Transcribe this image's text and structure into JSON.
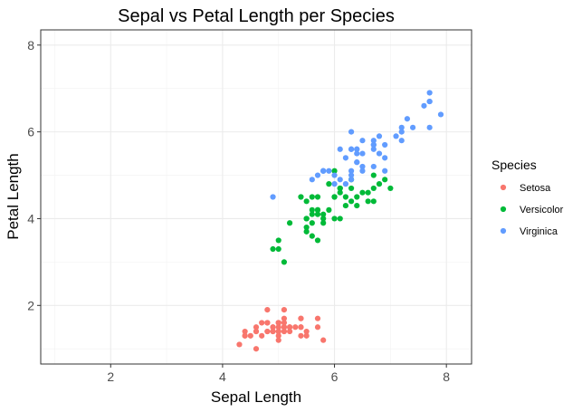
{
  "chart_data": {
    "type": "scatter",
    "title": "Sepal vs Petal Length per Species",
    "xlabel": "Sepal Length",
    "ylabel": "Petal Length",
    "xlim": [
      0.75,
      8.45
    ],
    "ylim": [
      0.65,
      8.35
    ],
    "x_ticks": [
      2,
      4,
      6,
      8
    ],
    "y_ticks": [
      2,
      4,
      6,
      8
    ],
    "grid": true,
    "legend": {
      "title": "Species",
      "position": "right"
    },
    "series": [
      {
        "name": "Setosa",
        "color": "#F8766D",
        "points": [
          [
            5.1,
            1.4
          ],
          [
            4.9,
            1.4
          ],
          [
            4.7,
            1.3
          ],
          [
            4.6,
            1.5
          ],
          [
            5.0,
            1.4
          ],
          [
            5.4,
            1.7
          ],
          [
            4.6,
            1.4
          ],
          [
            5.0,
            1.5
          ],
          [
            4.4,
            1.4
          ],
          [
            4.9,
            1.5
          ],
          [
            5.4,
            1.5
          ],
          [
            4.8,
            1.6
          ],
          [
            4.8,
            1.4
          ],
          [
            4.3,
            1.1
          ],
          [
            5.8,
            1.2
          ],
          [
            5.7,
            1.5
          ],
          [
            5.4,
            1.3
          ],
          [
            5.1,
            1.4
          ],
          [
            5.7,
            1.7
          ],
          [
            5.1,
            1.5
          ],
          [
            5.4,
            1.7
          ],
          [
            5.1,
            1.5
          ],
          [
            4.6,
            1.0
          ],
          [
            5.1,
            1.7
          ],
          [
            4.8,
            1.9
          ],
          [
            5.0,
            1.6
          ],
          [
            5.0,
            1.6
          ],
          [
            5.2,
            1.5
          ],
          [
            5.2,
            1.4
          ],
          [
            4.7,
            1.6
          ],
          [
            4.8,
            1.6
          ],
          [
            5.4,
            1.5
          ],
          [
            5.2,
            1.5
          ],
          [
            5.5,
            1.4
          ],
          [
            4.9,
            1.5
          ],
          [
            5.0,
            1.2
          ],
          [
            5.5,
            1.3
          ],
          [
            4.9,
            1.4
          ],
          [
            4.4,
            1.3
          ],
          [
            5.1,
            1.5
          ],
          [
            5.0,
            1.3
          ],
          [
            4.5,
            1.3
          ],
          [
            4.4,
            1.3
          ],
          [
            5.0,
            1.6
          ],
          [
            5.1,
            1.9
          ],
          [
            4.8,
            1.4
          ],
          [
            5.1,
            1.6
          ],
          [
            4.6,
            1.4
          ],
          [
            5.3,
            1.5
          ],
          [
            5.0,
            1.4
          ]
        ]
      },
      {
        "name": "Versicolor",
        "color": "#00BA38",
        "points": [
          [
            7.0,
            4.7
          ],
          [
            6.4,
            4.5
          ],
          [
            6.9,
            4.9
          ],
          [
            5.5,
            4.0
          ],
          [
            6.5,
            4.6
          ],
          [
            5.7,
            4.5
          ],
          [
            6.3,
            4.7
          ],
          [
            4.9,
            3.3
          ],
          [
            6.6,
            4.6
          ],
          [
            5.2,
            3.9
          ],
          [
            5.0,
            3.5
          ],
          [
            5.9,
            4.2
          ],
          [
            6.0,
            4.0
          ],
          [
            6.1,
            4.7
          ],
          [
            5.6,
            3.6
          ],
          [
            6.7,
            4.4
          ],
          [
            5.6,
            4.5
          ],
          [
            5.8,
            4.1
          ],
          [
            6.2,
            4.5
          ],
          [
            5.6,
            3.9
          ],
          [
            5.9,
            4.8
          ],
          [
            6.1,
            4.0
          ],
          [
            6.3,
            4.9
          ],
          [
            6.1,
            4.7
          ],
          [
            6.4,
            4.3
          ],
          [
            6.6,
            4.4
          ],
          [
            6.8,
            4.8
          ],
          [
            6.7,
            5.0
          ],
          [
            6.0,
            4.5
          ],
          [
            5.7,
            3.5
          ],
          [
            5.5,
            3.8
          ],
          [
            5.5,
            3.7
          ],
          [
            5.8,
            3.9
          ],
          [
            6.0,
            5.1
          ],
          [
            5.4,
            4.5
          ],
          [
            6.0,
            4.5
          ],
          [
            6.7,
            4.7
          ],
          [
            6.3,
            4.4
          ],
          [
            5.6,
            4.1
          ],
          [
            5.5,
            4.0
          ],
          [
            5.5,
            4.4
          ],
          [
            6.1,
            4.6
          ],
          [
            5.8,
            4.0
          ],
          [
            5.0,
            3.3
          ],
          [
            5.6,
            4.2
          ],
          [
            5.7,
            4.2
          ],
          [
            5.7,
            4.2
          ],
          [
            6.2,
            4.3
          ],
          [
            5.1,
            3.0
          ],
          [
            5.7,
            4.1
          ]
        ]
      },
      {
        "name": "Virginica",
        "color": "#619CFF",
        "points": [
          [
            6.3,
            6.0
          ],
          [
            5.8,
            5.1
          ],
          [
            7.1,
            5.9
          ],
          [
            6.3,
            5.6
          ],
          [
            6.5,
            5.8
          ],
          [
            7.6,
            6.6
          ],
          [
            4.9,
            4.5
          ],
          [
            7.3,
            6.3
          ],
          [
            6.7,
            5.8
          ],
          [
            7.2,
            6.1
          ],
          [
            6.5,
            5.1
          ],
          [
            6.4,
            5.3
          ],
          [
            6.8,
            5.5
          ],
          [
            5.7,
            5.0
          ],
          [
            5.8,
            5.1
          ],
          [
            6.4,
            5.3
          ],
          [
            6.5,
            5.5
          ],
          [
            7.7,
            6.7
          ],
          [
            7.7,
            6.9
          ],
          [
            6.0,
            5.0
          ],
          [
            6.9,
            5.7
          ],
          [
            5.6,
            4.9
          ],
          [
            7.7,
            6.7
          ],
          [
            6.3,
            4.9
          ],
          [
            6.7,
            5.7
          ],
          [
            7.2,
            6.0
          ],
          [
            6.2,
            4.8
          ],
          [
            6.1,
            4.9
          ],
          [
            6.4,
            5.6
          ],
          [
            7.2,
            5.8
          ],
          [
            7.4,
            6.1
          ],
          [
            7.9,
            6.4
          ],
          [
            6.4,
            5.6
          ],
          [
            6.3,
            5.1
          ],
          [
            6.1,
            5.6
          ],
          [
            7.7,
            6.1
          ],
          [
            6.3,
            5.6
          ],
          [
            6.4,
            5.5
          ],
          [
            6.0,
            4.8
          ],
          [
            6.9,
            5.4
          ],
          [
            6.7,
            5.6
          ],
          [
            6.9,
            5.1
          ],
          [
            5.8,
            5.1
          ],
          [
            6.8,
            5.9
          ],
          [
            6.7,
            5.7
          ],
          [
            6.7,
            5.2
          ],
          [
            6.3,
            5.0
          ],
          [
            6.5,
            5.2
          ],
          [
            6.2,
            5.4
          ],
          [
            5.9,
            5.1
          ]
        ]
      }
    ]
  }
}
